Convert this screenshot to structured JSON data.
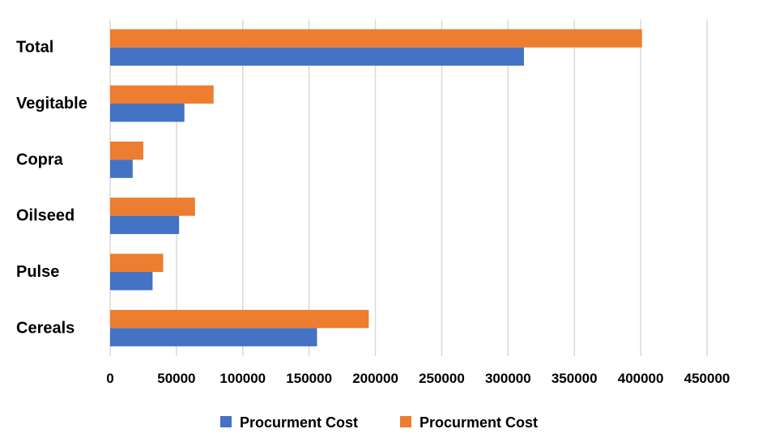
{
  "chart_data": {
    "type": "bar",
    "orientation": "horizontal",
    "title": "",
    "xlabel": "",
    "ylabel": "",
    "categories": [
      "Cereals",
      "Pulse",
      "Oilseed",
      "Copra",
      "Vegitable",
      "Total"
    ],
    "series": [
      {
        "name": "Procurment Cost",
        "color": "#4472C4",
        "values": [
          156000,
          32000,
          52000,
          17000,
          56000,
          312000
        ]
      },
      {
        "name": "Procurment Cost",
        "color": "#ED7D31",
        "values": [
          195000,
          40000,
          64000,
          25000,
          78000,
          401000
        ]
      }
    ],
    "xlim": [
      0,
      450000
    ],
    "xticks": [
      "0",
      "50000",
      "100000",
      "150000",
      "200000",
      "250000",
      "300000",
      "350000",
      "400000",
      "450000"
    ],
    "grid": true,
    "legend_position": "bottom"
  }
}
